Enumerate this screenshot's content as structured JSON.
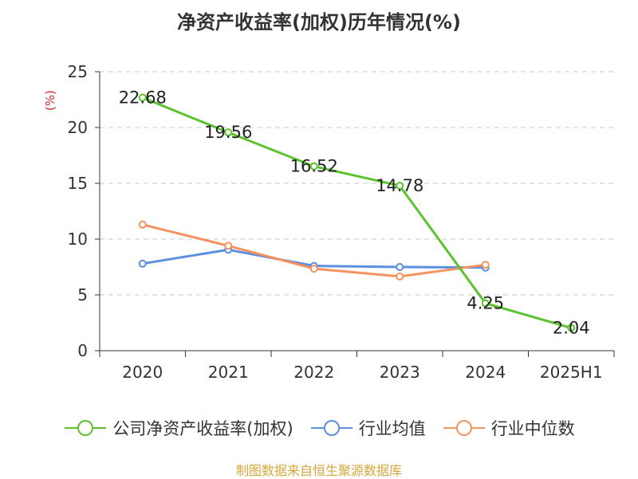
{
  "title": "净资产收益率(加权)历年情况(%)",
  "source": "制图数据来自恒生聚源数据库",
  "chart_data": {
    "type": "line",
    "title": "净资产收益率(加权)历年情况(%)",
    "ylabel": "(%)",
    "ylim": [
      0,
      25
    ],
    "yticks": [
      0,
      5,
      10,
      15,
      20,
      25
    ],
    "categories": [
      "2020",
      "2021",
      "2022",
      "2023",
      "2024",
      "2025H1"
    ],
    "grid": "horizontal-dashed",
    "legend_position": "bottom",
    "series": [
      {
        "name": "公司净资产收益率(加权)",
        "color": "#5cc22d",
        "values": [
          22.68,
          19.56,
          16.52,
          14.78,
          4.25,
          2.04
        ],
        "labels": [
          "22.68",
          "19.56",
          "16.52",
          "14.78",
          "4.25",
          "2.04"
        ]
      },
      {
        "name": "行业均值",
        "color": "#5b8fe0",
        "values": [
          7.8,
          9.05,
          7.6,
          7.5,
          7.45,
          null
        ]
      },
      {
        "name": "行业中位数",
        "color": "#f5925f",
        "values": [
          11.3,
          9.4,
          7.35,
          6.65,
          7.7,
          null
        ]
      }
    ]
  }
}
